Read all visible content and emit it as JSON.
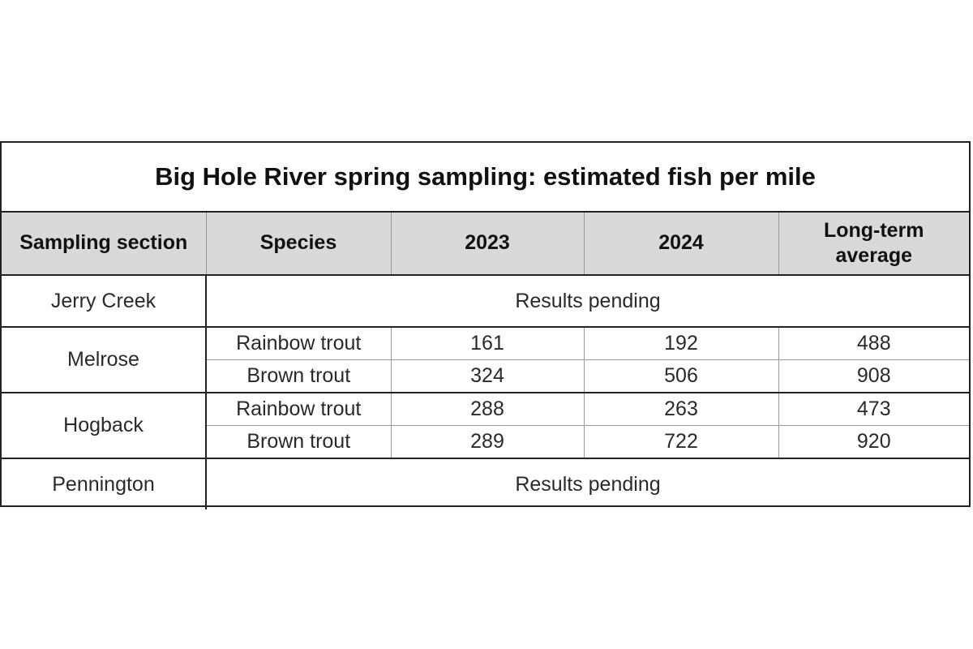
{
  "table": {
    "title": "Big Hole River spring sampling: estimated fish per mile",
    "headers": {
      "section": "Sampling section",
      "species": "Species",
      "y2023": "2023",
      "y2024": "2024",
      "longterm_line1": "Long-term",
      "longterm_line2": "average"
    },
    "rows": [
      {
        "section": "Jerry Creek",
        "status": "Results pending"
      },
      {
        "section": "Melrose",
        "species": [
          {
            "name": "Rainbow trout",
            "y2023": "161",
            "y2024": "192",
            "longterm": "488"
          },
          {
            "name": "Brown trout",
            "y2023": "324",
            "y2024": "506",
            "longterm": "908"
          }
        ]
      },
      {
        "section": "Hogback",
        "species": [
          {
            "name": "Rainbow trout",
            "y2023": "288",
            "y2024": "263",
            "longterm": "473"
          },
          {
            "name": "Brown trout",
            "y2023": "289",
            "y2024": "722",
            "longterm": "920"
          }
        ]
      },
      {
        "section": "Pennington",
        "status": "Results pending"
      }
    ]
  },
  "colors": {
    "header_background": "#d9d9d9",
    "border": "#222222",
    "inner_border": "#9a9a9a"
  }
}
